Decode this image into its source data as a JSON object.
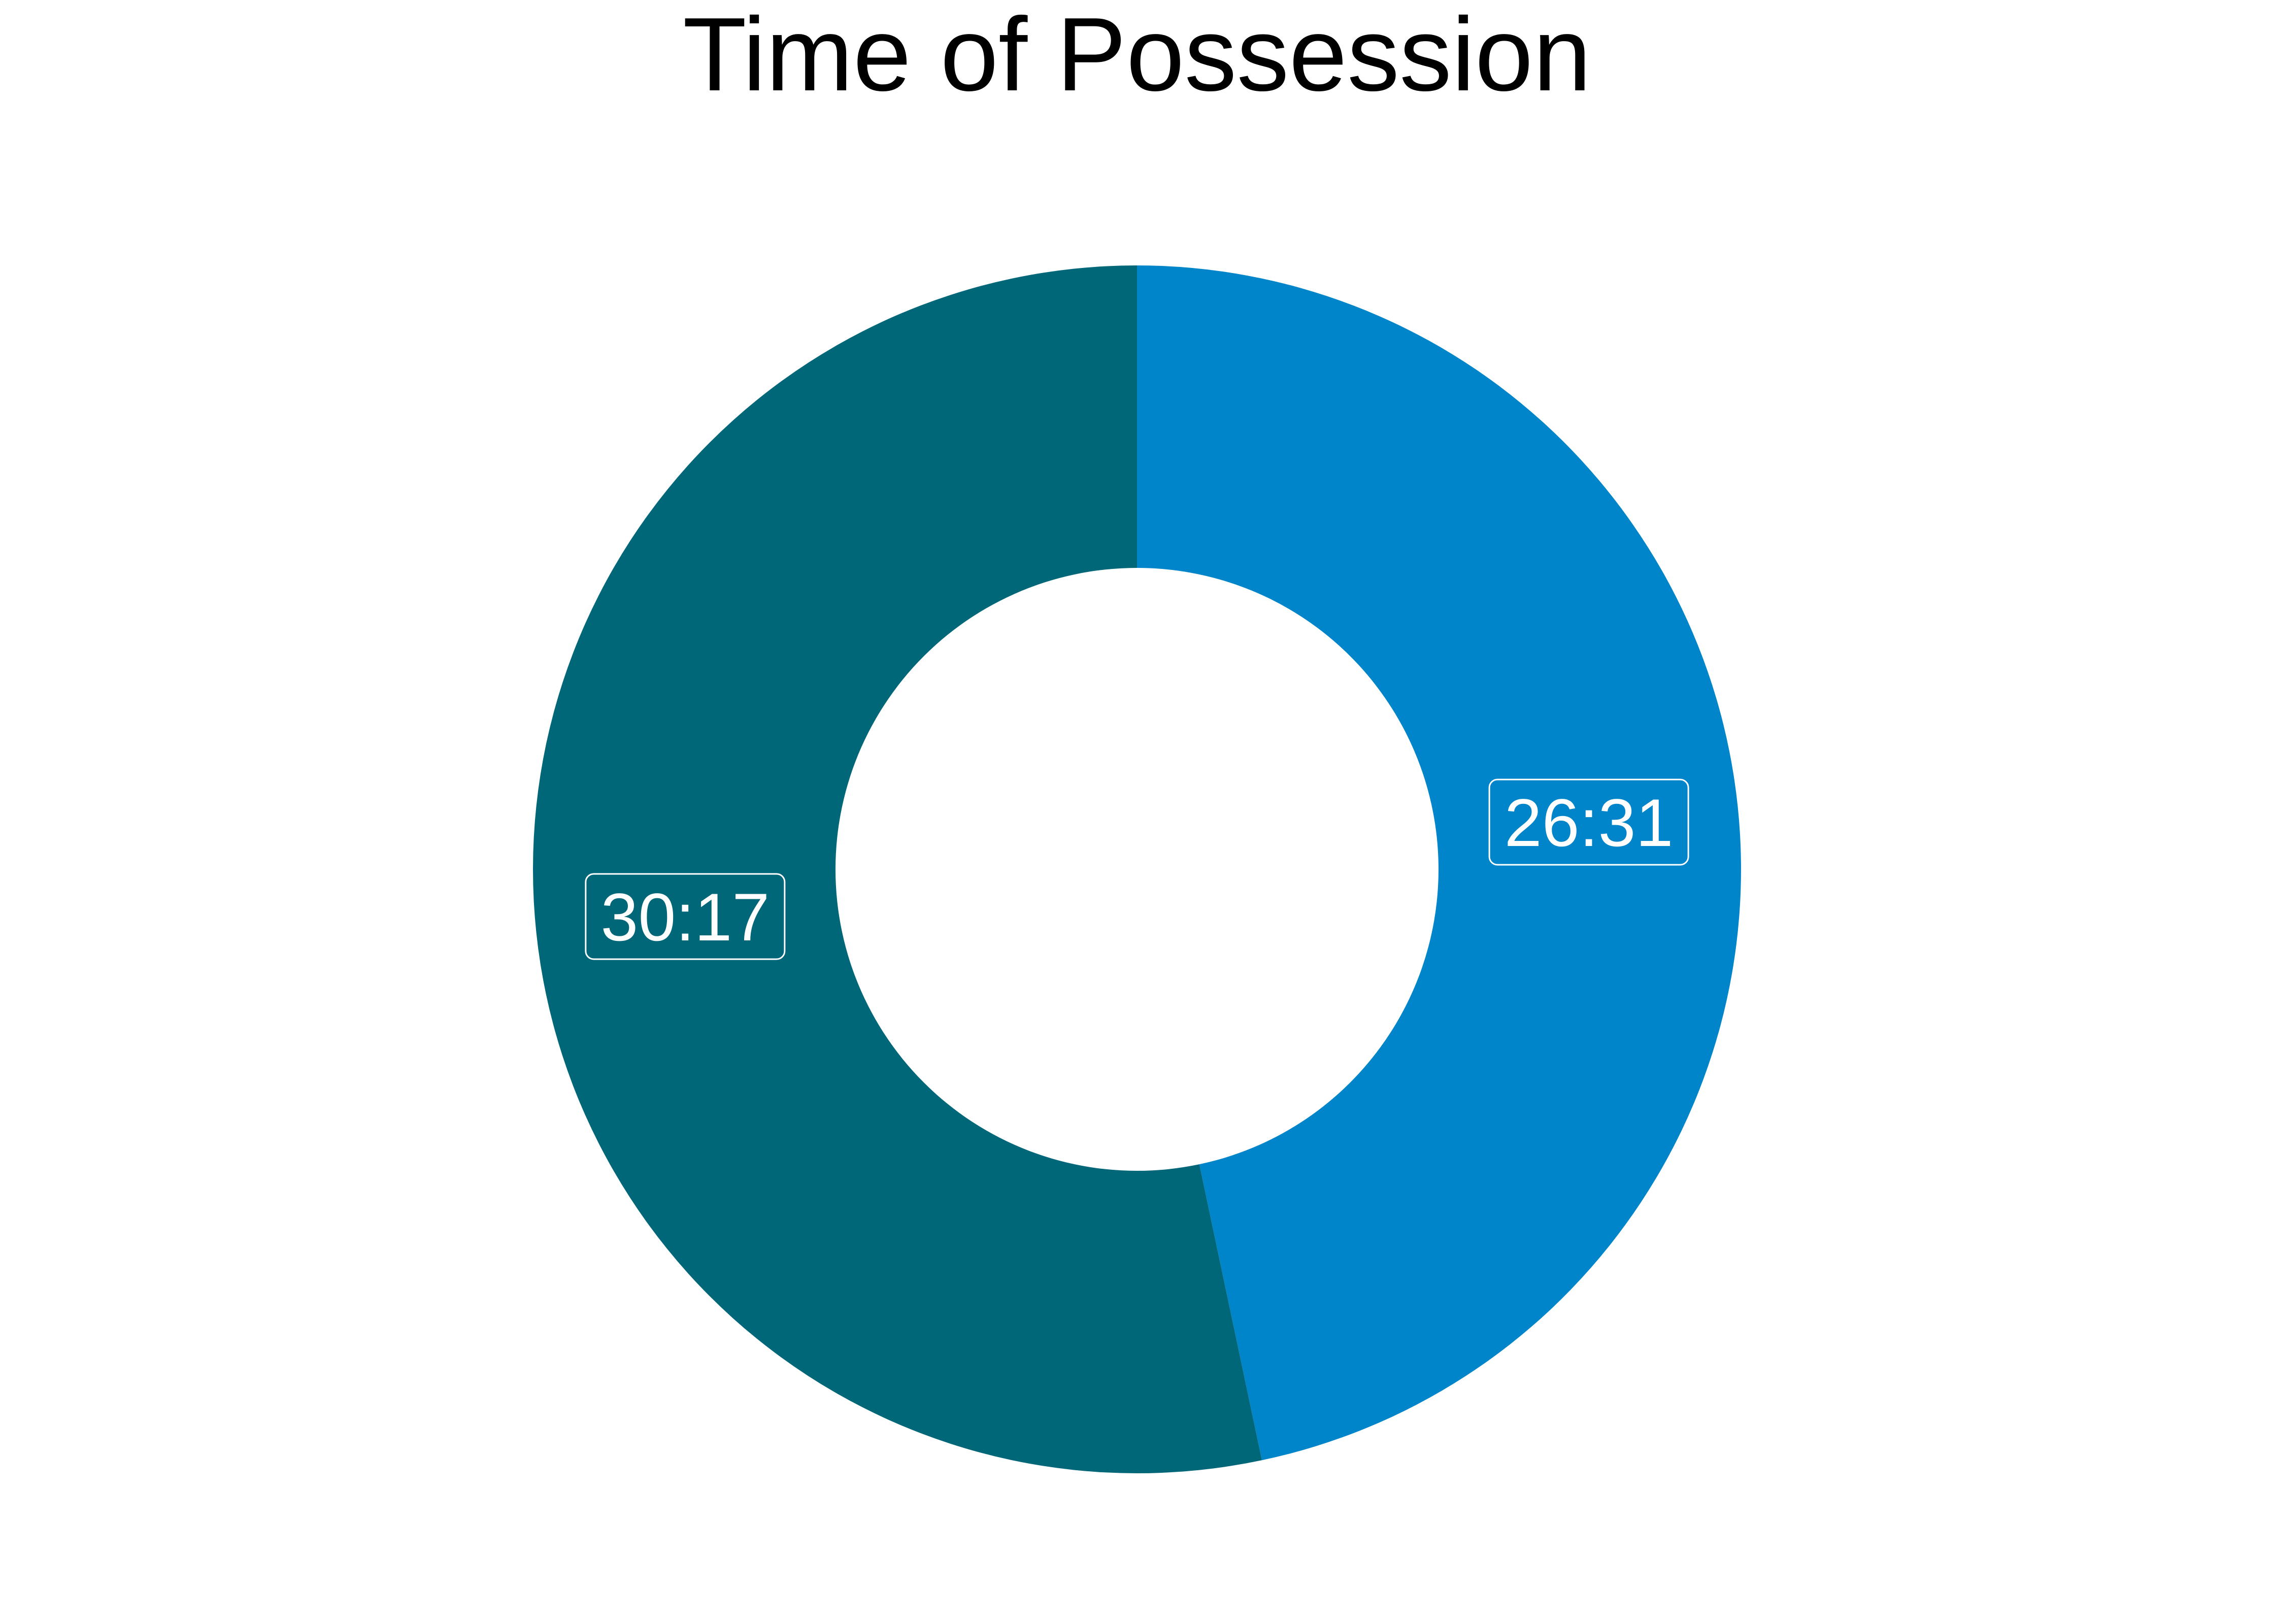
{
  "chart_data": {
    "type": "pie",
    "style": "donut",
    "title": "Time of Possession",
    "slices": [
      {
        "value": "26:31",
        "minutes": 26.517,
        "label": "26:31",
        "color": "#0085ca"
      },
      {
        "value": "30:17",
        "minutes": 30.283,
        "label": "30:17",
        "color": "#006778"
      }
    ],
    "start_angle": "12 o'clock",
    "direction": "clockwise",
    "legend": "none",
    "label_text_color": "#ffffff",
    "background": "#ffffff"
  }
}
